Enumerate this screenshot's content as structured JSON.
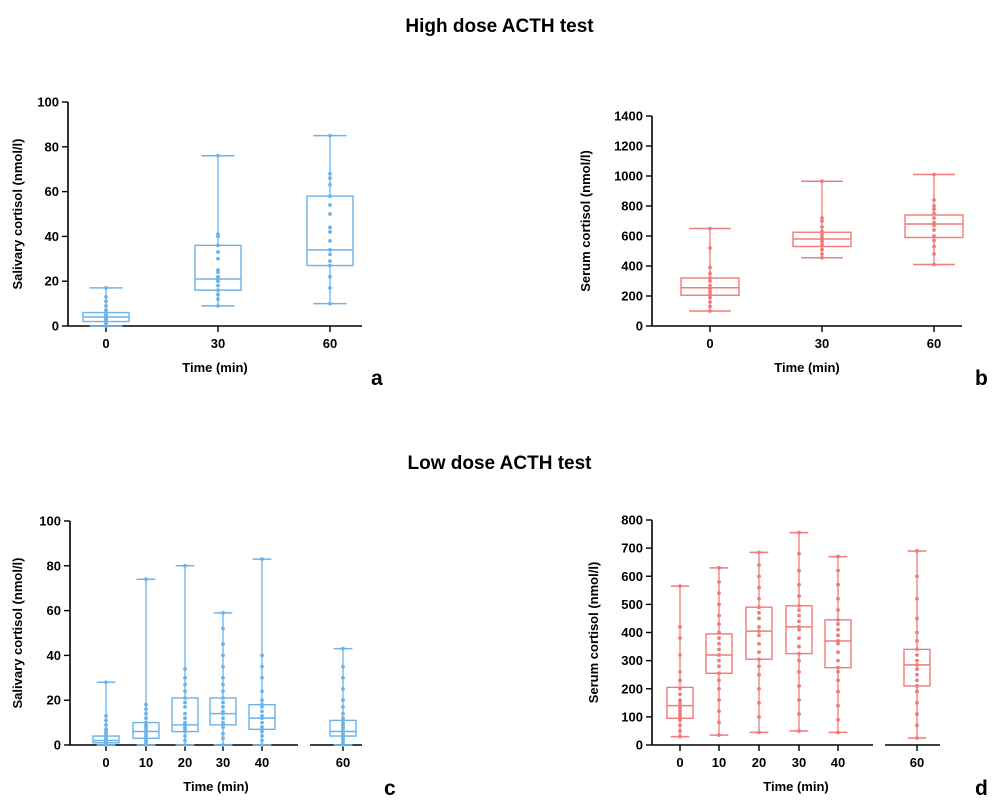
{
  "titles": {
    "high": "High dose ACTH test",
    "low": "Low dose ACTH test"
  },
  "colors": {
    "salivary": "#6db3e8",
    "serum": "#f07b7b",
    "axis": "#000000"
  },
  "chart_data": [
    {
      "id": "a",
      "panel_label": "a",
      "type": "box",
      "color": "salivary",
      "xlabel": "Time (min)",
      "ylabel": "Salivary cortisol (nmol/l)",
      "ylim": [
        0,
        100
      ],
      "yticks": [
        0,
        20,
        40,
        60,
        80,
        100
      ],
      "categories": [
        "0",
        "30",
        "60"
      ],
      "gap_before": [],
      "boxes": [
        {
          "min": 0,
          "q1": 2,
          "median": 4,
          "q3": 6,
          "max": 17,
          "points": [
            0,
            1,
            1.5,
            2,
            2.5,
            3,
            3.5,
            4,
            4.5,
            5,
            6,
            7,
            9,
            11,
            13,
            17
          ]
        },
        {
          "min": 9,
          "q1": 16,
          "median": 21,
          "q3": 36,
          "max": 76,
          "points": [
            9,
            12,
            14,
            16,
            18,
            20,
            21,
            22,
            24,
            25,
            30,
            33,
            36,
            40,
            41,
            76
          ]
        },
        {
          "min": 10,
          "q1": 27,
          "median": 34,
          "q3": 58,
          "max": 85,
          "points": [
            10,
            17,
            22,
            27,
            29,
            32,
            34,
            38,
            42,
            44,
            50,
            54,
            58,
            63,
            66,
            68,
            85
          ]
        }
      ]
    },
    {
      "id": "b",
      "panel_label": "b",
      "type": "box",
      "color": "serum",
      "xlabel": "Time (min)",
      "ylabel": "Serum cortisol (nmol/l)",
      "ylim": [
        0,
        1400
      ],
      "yticks": [
        0,
        200,
        400,
        600,
        800,
        1000,
        1200,
        1400
      ],
      "categories": [
        "0",
        "30",
        "60"
      ],
      "gap_before": [],
      "boxes": [
        {
          "min": 100,
          "q1": 205,
          "median": 255,
          "q3": 320,
          "max": 650,
          "points": [
            100,
            130,
            160,
            190,
            210,
            230,
            250,
            270,
            300,
            320,
            350,
            390,
            520,
            650
          ]
        },
        {
          "min": 455,
          "q1": 530,
          "median": 580,
          "q3": 625,
          "max": 965,
          "points": [
            455,
            480,
            510,
            540,
            560,
            575,
            590,
            610,
            630,
            660,
            700,
            720,
            965
          ]
        },
        {
          "min": 410,
          "q1": 590,
          "median": 680,
          "q3": 740,
          "max": 1010,
          "points": [
            410,
            480,
            530,
            570,
            600,
            640,
            670,
            690,
            720,
            750,
            780,
            800,
            840,
            1010
          ]
        }
      ]
    },
    {
      "id": "c",
      "panel_label": "c",
      "type": "box",
      "color": "salivary",
      "xlabel": "Time (min)",
      "ylabel": "Salivary cortisol (nmol/l)",
      "ylim": [
        0,
        100
      ],
      "yticks": [
        0,
        20,
        40,
        60,
        80,
        100
      ],
      "categories": [
        "0",
        "10",
        "20",
        "30",
        "40",
        "60"
      ],
      "gap_before": [
        5
      ],
      "boxes": [
        {
          "min": 0,
          "q1": 1,
          "median": 2,
          "q3": 4,
          "max": 28,
          "points": [
            0,
            0.5,
            1,
            1.5,
            2,
            2.5,
            3,
            4,
            5,
            6,
            7,
            9,
            11,
            13,
            28
          ]
        },
        {
          "min": 0,
          "q1": 3,
          "median": 6,
          "q3": 10,
          "max": 74,
          "points": [
            0,
            1,
            2,
            3,
            4,
            5,
            6,
            7,
            8,
            9,
            10,
            12,
            14,
            16,
            18,
            74
          ]
        },
        {
          "min": 0,
          "q1": 6,
          "median": 9,
          "q3": 21,
          "max": 80,
          "points": [
            0,
            2,
            4,
            6,
            7,
            8,
            9,
            10,
            12,
            14,
            17,
            19,
            21,
            24,
            27,
            30,
            34,
            80
          ]
        },
        {
          "min": 0,
          "q1": 9,
          "median": 14,
          "q3": 21,
          "max": 59,
          "points": [
            0,
            3,
            5,
            8,
            10,
            12,
            14,
            15,
            17,
            19,
            21,
            24,
            27,
            30,
            35,
            40,
            45,
            52,
            59
          ]
        },
        {
          "min": 0,
          "q1": 7,
          "median": 12,
          "q3": 18,
          "max": 83,
          "points": [
            0,
            2,
            4,
            6,
            8,
            10,
            12,
            13,
            15,
            17,
            18,
            20,
            24,
            30,
            35,
            40,
            83
          ]
        },
        {
          "min": 0,
          "q1": 4,
          "median": 6,
          "q3": 11,
          "max": 43,
          "points": [
            0,
            1,
            2,
            3,
            4,
            5,
            6,
            7,
            8,
            9,
            10,
            12,
            14,
            17,
            20,
            25,
            30,
            35,
            43
          ]
        }
      ]
    },
    {
      "id": "d",
      "panel_label": "d",
      "type": "box",
      "color": "serum",
      "xlabel": "Time (min)",
      "ylabel": "Serum cortisol (nmol/l)",
      "ylim": [
        0,
        800
      ],
      "yticks": [
        0,
        100,
        200,
        300,
        400,
        500,
        600,
        700,
        800
      ],
      "categories": [
        "0",
        "10",
        "20",
        "30",
        "40",
        "60"
      ],
      "gap_before": [
        5
      ],
      "boxes": [
        {
          "min": 30,
          "q1": 95,
          "median": 140,
          "q3": 205,
          "max": 565,
          "points": [
            30,
            50,
            70,
            90,
            100,
            110,
            120,
            130,
            140,
            150,
            160,
            180,
            200,
            230,
            260,
            320,
            380,
            420,
            565
          ]
        },
        {
          "min": 35,
          "q1": 255,
          "median": 320,
          "q3": 395,
          "max": 630,
          "points": [
            35,
            80,
            120,
            160,
            200,
            230,
            255,
            280,
            300,
            320,
            340,
            360,
            380,
            400,
            430,
            460,
            500,
            540,
            580,
            630
          ]
        },
        {
          "min": 45,
          "q1": 305,
          "median": 405,
          "q3": 490,
          "max": 685,
          "points": [
            45,
            100,
            150,
            200,
            250,
            280,
            305,
            330,
            360,
            390,
            405,
            420,
            450,
            470,
            490,
            520,
            560,
            600,
            640,
            685
          ]
        },
        {
          "min": 50,
          "q1": 325,
          "median": 420,
          "q3": 495,
          "max": 755,
          "points": [
            50,
            110,
            160,
            210,
            260,
            300,
            325,
            350,
            380,
            410,
            420,
            440,
            460,
            480,
            495,
            530,
            570,
            620,
            680,
            755
          ]
        },
        {
          "min": 45,
          "q1": 275,
          "median": 370,
          "q3": 445,
          "max": 670,
          "points": [
            45,
            90,
            140,
            190,
            230,
            260,
            275,
            300,
            330,
            360,
            370,
            390,
            410,
            430,
            445,
            480,
            520,
            570,
            620,
            670
          ]
        },
        {
          "min": 25,
          "q1": 210,
          "median": 285,
          "q3": 340,
          "max": 690,
          "points": [
            25,
            70,
            110,
            150,
            190,
            210,
            230,
            250,
            270,
            285,
            300,
            320,
            340,
            370,
            400,
            450,
            520,
            600,
            690
          ]
        }
      ]
    }
  ]
}
